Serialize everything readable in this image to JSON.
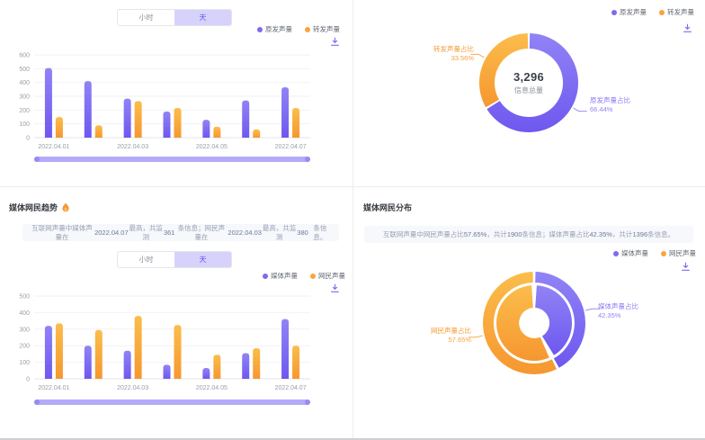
{
  "colors": {
    "purple": "#7d6af1",
    "purple_grad": [
      "#9183f6",
      "#6e58ef"
    ],
    "orange": "#f9a43c",
    "orange_grad": [
      "#fbbd4b",
      "#f69730"
    ],
    "toggle_selected_bg": "#d7d2fb",
    "toggle_selected_text": "#6456e8",
    "scrollbar": "#b3abf7",
    "description_bg": "#f7f8fb",
    "grid": "#f2f2f6"
  },
  "icons": {
    "download": "download-arrow-into-tray",
    "flame": "hot-flame",
    "legend_dot": "colored-circle"
  },
  "time_toggle": {
    "options": [
      "小时",
      "天"
    ],
    "selected": "天"
  },
  "panels": {
    "top_left": {},
    "top_right": {},
    "bottom_left": {
      "title": "媒体网民趋势",
      "description": [
        {
          "t": "互联网声量中媒体声量在",
          "h": false
        },
        {
          "t": "2022.04.07",
          "h": true
        },
        {
          "t": "最高，共监测",
          "h": false
        },
        {
          "t": "361",
          "h": true
        },
        {
          "t": "条信息；网民声量在",
          "h": false
        },
        {
          "t": "2022.04.03",
          "h": true
        },
        {
          "t": "最高，共监测",
          "h": false
        },
        {
          "t": "380",
          "h": true
        },
        {
          "t": "条信息。",
          "h": false
        }
      ]
    },
    "bottom_right": {
      "title": "媒体网民分布",
      "description": [
        {
          "t": "互联网声量中网民声量占比",
          "h": false
        },
        {
          "t": "57.65%",
          "h": true
        },
        {
          "t": "，共计",
          "h": false
        },
        {
          "t": "1900",
          "h": true
        },
        {
          "t": "条信息；媒体声量占比",
          "h": false
        },
        {
          "t": "42.35%",
          "h": true
        },
        {
          "t": "，共计",
          "h": false
        },
        {
          "t": "1396",
          "h": true
        },
        {
          "t": "条信息。",
          "h": false
        }
      ]
    }
  },
  "chart_data": [
    {
      "id": "origin-forward-trend",
      "type": "bar",
      "categories": [
        "2022.04.01",
        "2022.04.02",
        "2022.04.03",
        "2022.04.04",
        "2022.04.05",
        "2022.04.06",
        "2022.04.07"
      ],
      "series": [
        {
          "name": "原发声量",
          "color_key": "purple",
          "values": [
            505,
            410,
            283,
            190,
            130,
            270,
            365
          ]
        },
        {
          "name": "转发声量",
          "color_key": "orange",
          "values": [
            150,
            90,
            265,
            215,
            80,
            60,
            215
          ]
        }
      ],
      "ylim": [
        0,
        600
      ],
      "ytick_step": 100,
      "xtick_every": 2,
      "grid": true,
      "legend_position": "top-right",
      "has_datazoom_slider": true
    },
    {
      "id": "origin-forward-share",
      "type": "pie",
      "nested": false,
      "total_value": "3,296",
      "total_label": "信息总量",
      "slices": [
        {
          "name": "原发声量占比",
          "pct": 66.44,
          "pct_label": "66.44%",
          "color_key": "purple"
        },
        {
          "name": "转发声量占比",
          "pct": 33.56,
          "pct_label": "33.56%",
          "color_key": "orange"
        }
      ],
      "legend": [
        "原发声量",
        "转发声量"
      ],
      "legend_position": "top-right"
    },
    {
      "id": "media-netizen-trend",
      "type": "bar",
      "categories": [
        "2022.04.01",
        "2022.04.02",
        "2022.04.03",
        "2022.04.04",
        "2022.04.05",
        "2022.04.06",
        "2022.04.07"
      ],
      "series": [
        {
          "name": "媒体声量",
          "color_key": "purple",
          "values": [
            320,
            200,
            170,
            85,
            65,
            155,
            361
          ]
        },
        {
          "name": "网民声量",
          "color_key": "orange",
          "values": [
            335,
            295,
            380,
            325,
            145,
            185,
            200
          ]
        }
      ],
      "ylim": [
        0,
        500
      ],
      "ytick_step": 100,
      "xtick_every": 2,
      "grid": true,
      "legend_position": "top-right",
      "has_datazoom_slider": true
    },
    {
      "id": "media-netizen-share",
      "type": "pie",
      "nested": true,
      "slices": [
        {
          "name": "媒体声量占比",
          "pct": 42.35,
          "pct_label": "42.35%",
          "color_key": "purple"
        },
        {
          "name": "网民声量占比",
          "pct": 57.65,
          "pct_label": "57.65%",
          "color_key": "orange"
        }
      ],
      "legend": [
        "媒体声量",
        "网民声量"
      ],
      "legend_position": "top-right"
    }
  ]
}
